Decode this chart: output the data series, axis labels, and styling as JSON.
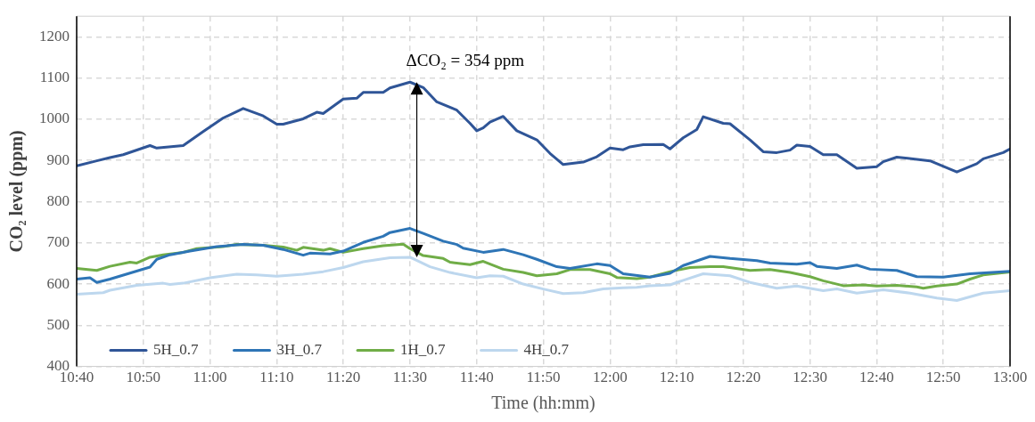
{
  "chart_data": {
    "type": "line",
    "xlabel": "Time (hh:mm)",
    "ylabel": "CO₂ level (ppm)",
    "xlim": [
      10.6667,
      13
    ],
    "ylim": [
      400,
      1250
    ],
    "xticks": [
      {
        "value": 10.6667,
        "label": "10:40"
      },
      {
        "value": 10.8333,
        "label": "10:50"
      },
      {
        "value": 11,
        "label": "11:00"
      },
      {
        "value": 11.1667,
        "label": "11:10"
      },
      {
        "value": 11.3333,
        "label": "11:20"
      },
      {
        "value": 11.5,
        "label": "11:30"
      },
      {
        "value": 11.6667,
        "label": "11:40"
      },
      {
        "value": 11.8333,
        "label": "11:50"
      },
      {
        "value": 12,
        "label": "12:00"
      },
      {
        "value": 12.1667,
        "label": "12:10"
      },
      {
        "value": 12.3333,
        "label": "12:20"
      },
      {
        "value": 12.5,
        "label": "12:30"
      },
      {
        "value": 12.6667,
        "label": "12:40"
      },
      {
        "value": 12.8333,
        "label": "12:50"
      },
      {
        "value": 13,
        "label": "13:00"
      }
    ],
    "yticks": [
      400,
      500,
      600,
      700,
      800,
      900,
      1000,
      1100,
      1200
    ],
    "grid": true,
    "legend": "bottom left",
    "marker": "none",
    "line_style": "solid",
    "annotations": [
      {
        "text": "ΔCO₂ = 354 ppm",
        "x": 11.517,
        "y": 1090
      }
    ],
    "series": [
      {
        "name": "5H_0.7",
        "color": "#2f5597",
        "x": [
          10.667,
          10.717,
          10.75,
          10.783,
          10.85,
          10.867,
          10.933,
          10.983,
          11.033,
          11.083,
          11.133,
          11.167,
          11.183,
          11.233,
          11.267,
          11.283,
          11.333,
          11.367,
          11.383,
          11.433,
          11.45,
          11.5,
          11.533,
          11.567,
          11.617,
          11.65,
          11.667,
          11.683,
          11.7,
          11.733,
          11.767,
          11.817,
          11.85,
          11.883,
          11.933,
          11.967,
          12,
          12.033,
          12.05,
          12.083,
          12.133,
          12.15,
          12.183,
          12.217,
          12.233,
          12.283,
          12.3,
          12.35,
          12.383,
          12.417,
          12.45,
          12.467,
          12.5,
          12.533,
          12.567,
          12.617,
          12.667,
          12.683,
          12.717,
          12.8,
          12.867,
          12.917,
          12.933,
          12.983,
          13
        ],
        "values": [
          887,
          899,
          907,
          914,
          936,
          930,
          936,
          970,
          1003,
          1026,
          1008,
          988,
          988,
          1001,
          1017,
          1014,
          1049,
          1051,
          1065,
          1065,
          1076,
          1090,
          1077,
          1042,
          1022,
          990,
          972,
          979,
          993,
          1007,
          972,
          950,
          917,
          890,
          896,
          909,
          930,
          926,
          933,
          938,
          939,
          928,
          955,
          975,
          1006,
          990,
          989,
          950,
          921,
          919,
          925,
          937,
          934,
          914,
          914,
          881,
          885,
          897,
          908,
          899,
          872,
          892,
          904,
          919,
          928
        ]
      },
      {
        "name": "3H_0.7",
        "color": "#2e75b6",
        "x": [
          10.667,
          10.7,
          10.717,
          10.75,
          10.85,
          10.867,
          10.9,
          10.95,
          11.017,
          11.083,
          11.133,
          11.183,
          11.233,
          11.25,
          11.3,
          11.333,
          11.383,
          11.433,
          11.45,
          11.5,
          11.533,
          11.583,
          11.617,
          11.633,
          11.683,
          11.733,
          11.783,
          11.817,
          11.867,
          11.9,
          11.967,
          12,
          12.033,
          12.1,
          12.15,
          12.183,
          12.25,
          12.3,
          12.367,
          12.4,
          12.467,
          12.5,
          12.517,
          12.567,
          12.617,
          12.65,
          12.717,
          12.767,
          12.833,
          12.9,
          13
        ],
        "values": [
          612,
          615,
          604,
          612,
          641,
          660,
          671,
          680,
          691,
          696,
          694,
          684,
          670,
          675,
          673,
          680,
          701,
          716,
          725,
          735,
          723,
          704,
          696,
          687,
          677,
          684,
          671,
          660,
          642,
          638,
          649,
          645,
          625,
          617,
          626,
          645,
          667,
          662,
          657,
          651,
          648,
          652,
          643,
          638,
          646,
          636,
          633,
          618,
          617,
          625,
          631
        ]
      },
      {
        "name": "1H_0.7",
        "color": "#70ad47",
        "x": [
          10.667,
          10.717,
          10.75,
          10.8,
          10.817,
          10.85,
          10.883,
          10.933,
          10.967,
          11.033,
          11.067,
          11.133,
          11.183,
          11.217,
          11.233,
          11.283,
          11.3,
          11.333,
          11.383,
          11.433,
          11.483,
          11.5,
          11.533,
          11.583,
          11.6,
          11.65,
          11.683,
          11.733,
          11.783,
          11.817,
          11.867,
          11.9,
          11.95,
          12,
          12.017,
          12.067,
          12.1,
          12.15,
          12.2,
          12.25,
          12.283,
          12.35,
          12.4,
          12.45,
          12.5,
          12.533,
          12.583,
          12.633,
          12.667,
          12.717,
          12.767,
          12.783,
          12.817,
          12.867,
          12.9,
          12.933,
          13
        ],
        "values": [
          638,
          633,
          643,
          653,
          651,
          665,
          671,
          677,
          686,
          691,
          696,
          694,
          690,
          682,
          689,
          682,
          686,
          677,
          686,
          693,
          697,
          686,
          669,
          662,
          653,
          647,
          655,
          636,
          628,
          620,
          625,
          635,
          635,
          625,
          616,
          613,
          617,
          630,
          640,
          642,
          642,
          633,
          635,
          628,
          618,
          608,
          596,
          598,
          595,
          597,
          593,
          590,
          595,
          600,
          612,
          622,
          629
        ]
      },
      {
        "name": "4H_0.7",
        "color": "#bdd7ee",
        "x": [
          10.667,
          10.733,
          10.75,
          10.817,
          10.883,
          10.9,
          10.933,
          11,
          11.067,
          11.117,
          11.167,
          11.233,
          11.283,
          11.333,
          11.383,
          11.45,
          11.5,
          11.55,
          11.6,
          11.667,
          11.7,
          11.733,
          11.783,
          11.833,
          11.883,
          11.933,
          11.983,
          12.033,
          12.067,
          12.1,
          12.15,
          12.183,
          12.233,
          12.3,
          12.35,
          12.417,
          12.467,
          12.533,
          12.567,
          12.617,
          12.683,
          12.75,
          12.817,
          12.867,
          12.933,
          13
        ],
        "values": [
          575,
          579,
          585,
          597,
          602,
          599,
          602,
          615,
          624,
          622,
          619,
          624,
          630,
          640,
          654,
          664,
          665,
          642,
          628,
          615,
          620,
          619,
          600,
          588,
          577,
          579,
          588,
          591,
          592,
          596,
          598,
          609,
          625,
          620,
          604,
          590,
          595,
          584,
          588,
          578,
          586,
          578,
          566,
          560,
          578,
          584
        ]
      }
    ]
  }
}
